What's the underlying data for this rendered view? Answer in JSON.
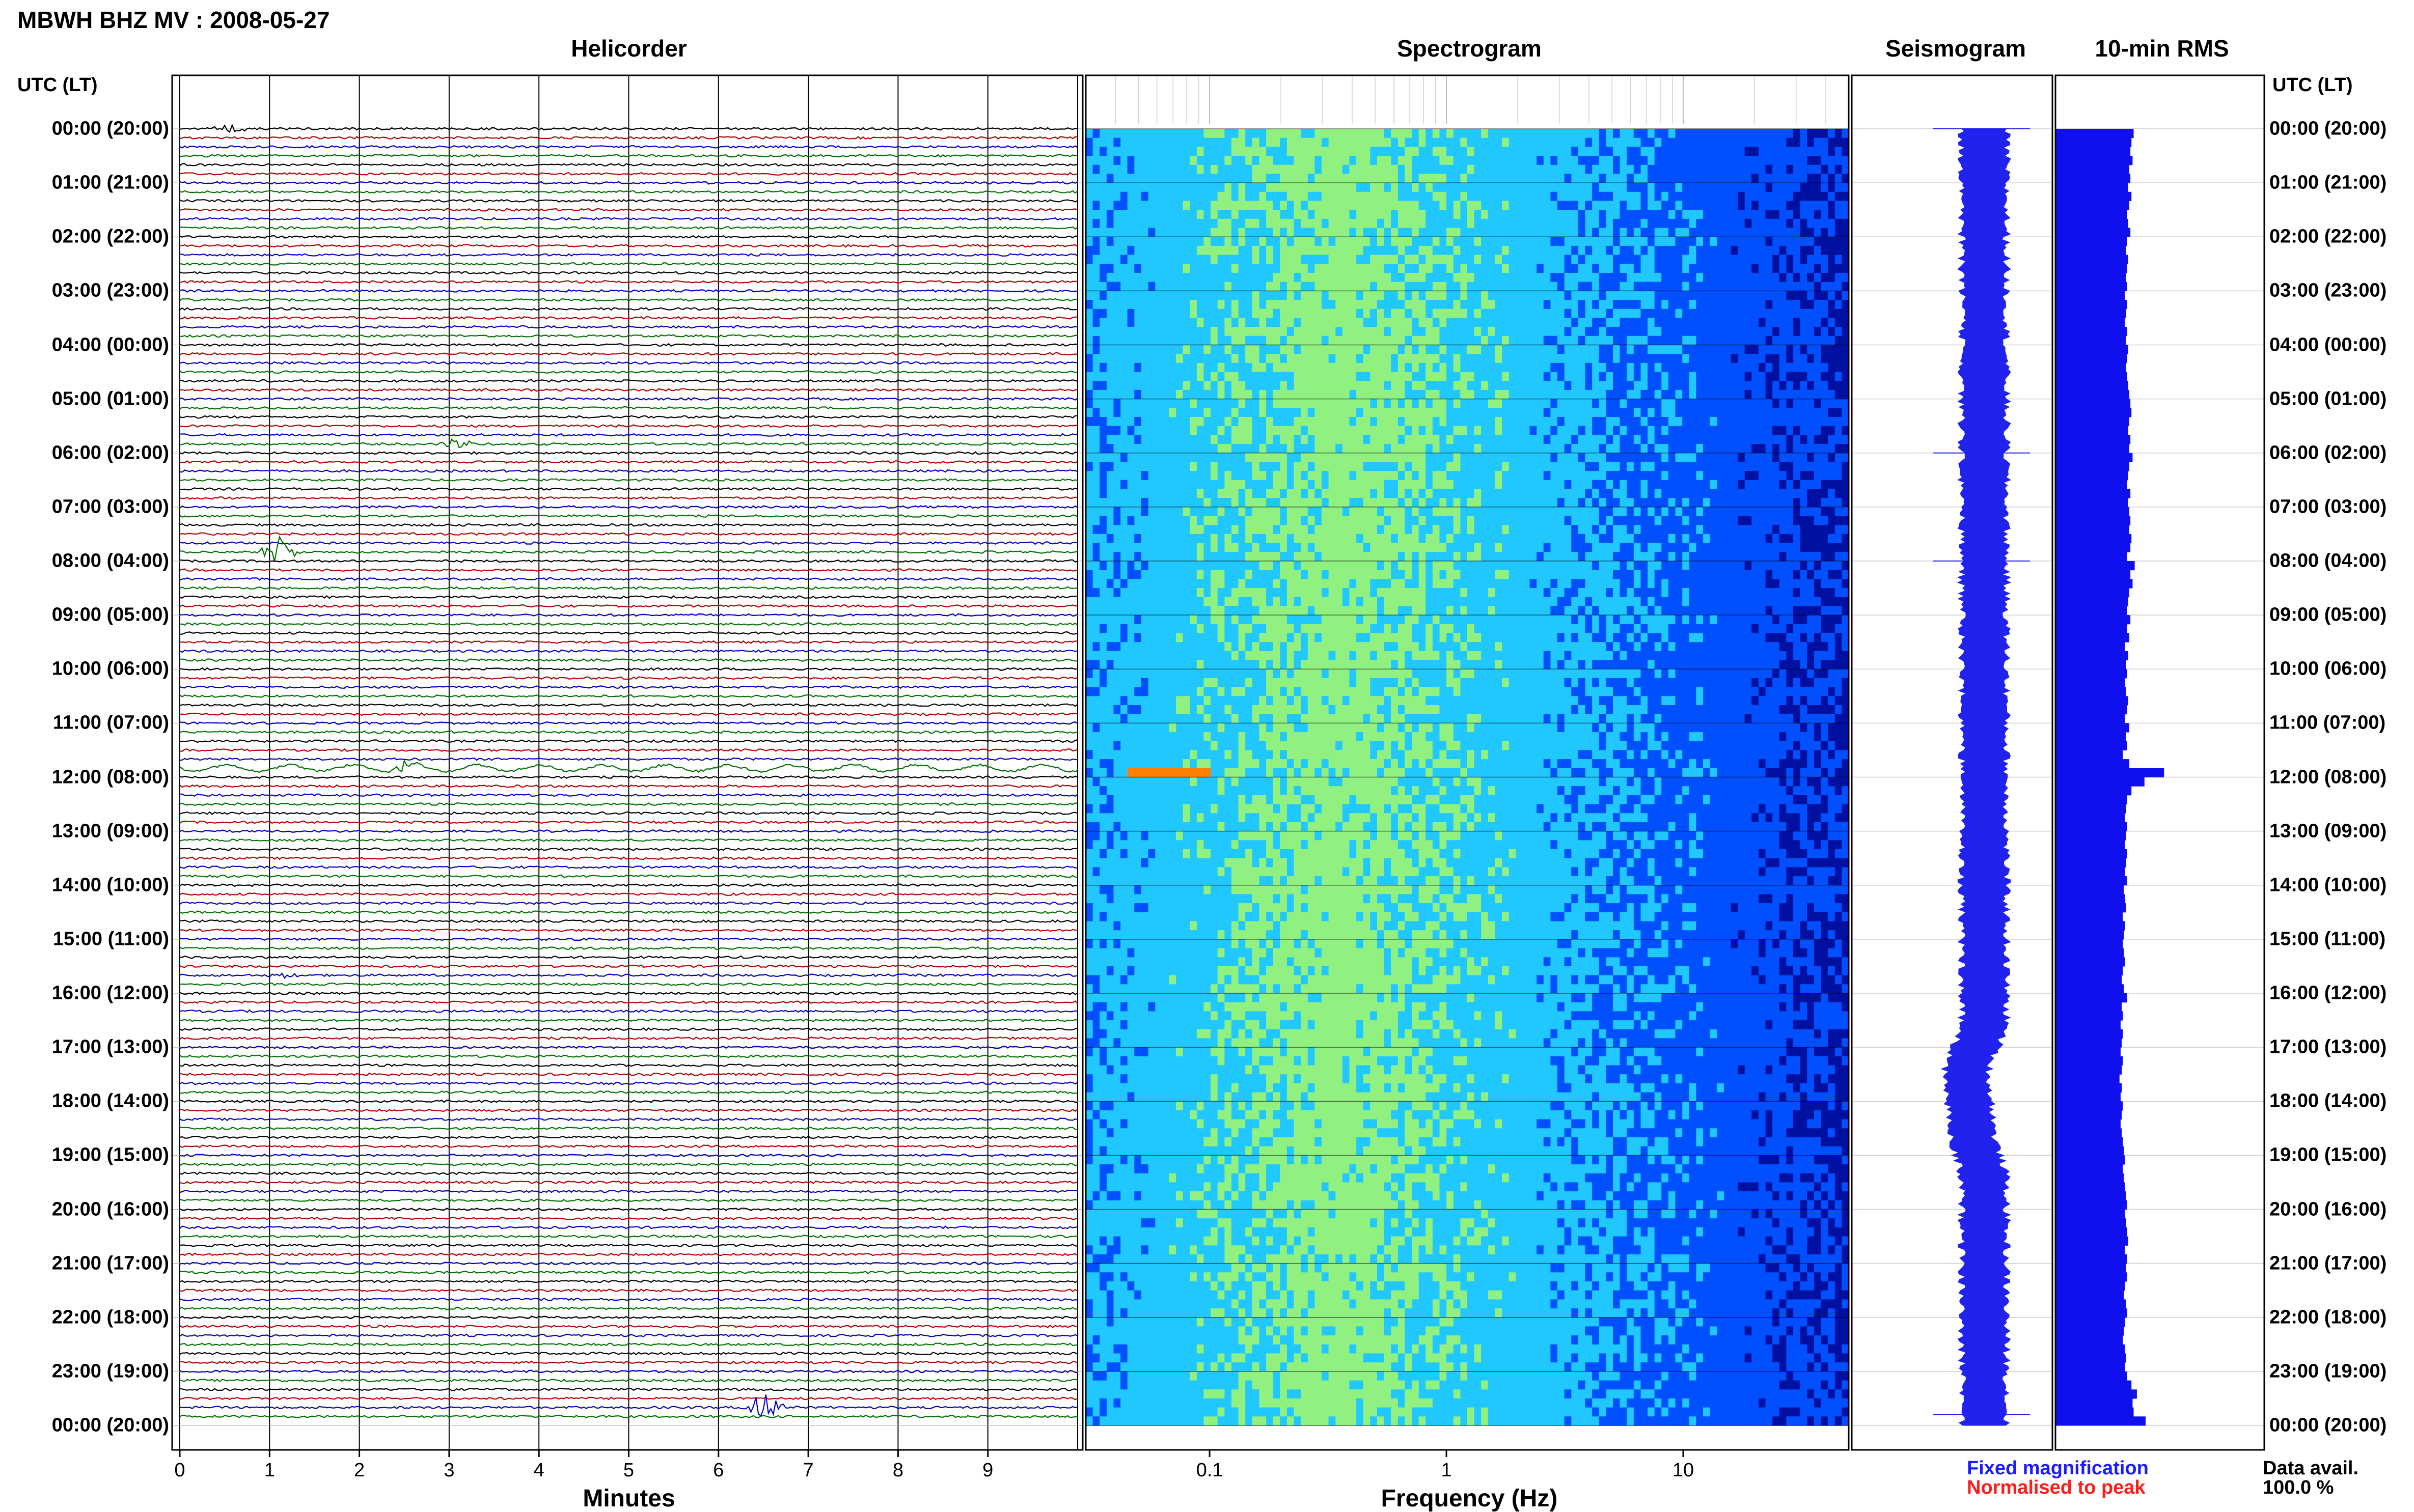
{
  "figure": {
    "title": "MBWH BHZ MV : 2008-05-27",
    "panel_titles": {
      "helicorder": "Helicorder",
      "spectrogram": "Spectrogram",
      "seismogram": "Seismogram",
      "rms": "10-min RMS"
    },
    "utc_header": "UTC (LT)",
    "row_labels": [
      "00:00 (20:00)",
      "01:00 (21:00)",
      "02:00 (22:00)",
      "03:00 (23:00)",
      "04:00 (00:00)",
      "05:00 (01:00)",
      "06:00 (02:00)",
      "07:00 (03:00)",
      "08:00 (04:00)",
      "09:00 (05:00)",
      "10:00 (06:00)",
      "11:00 (07:00)",
      "12:00 (08:00)",
      "13:00 (09:00)",
      "14:00 (10:00)",
      "15:00 (11:00)",
      "16:00 (12:00)",
      "17:00 (13:00)",
      "18:00 (14:00)",
      "19:00 (15:00)",
      "20:00 (16:00)",
      "21:00 (17:00)",
      "22:00 (18:00)",
      "23:00 (19:00)",
      "00:00 (20:00)"
    ],
    "x_axis_minutes": {
      "label": "Minutes",
      "ticks": [
        "0",
        "1",
        "2",
        "3",
        "4",
        "5",
        "6",
        "7",
        "8",
        "9"
      ]
    },
    "x_axis_frequency": {
      "label": "Frequency (Hz)",
      "ticks": [
        "0.1",
        "1",
        "10"
      ]
    },
    "legend": {
      "fixed": "Fixed magnification",
      "normalised": "Normalised to peak"
    },
    "data_availability": {
      "label": "Data avail.",
      "value": "100.0 %"
    },
    "colors": {
      "trace_cycle": [
        "#000000",
        "#b00000",
        "#0000c0",
        "#007000"
      ],
      "rms_bar": "#1010ee",
      "seismogram": "#2222ee",
      "legend_fixed": "#1c1cff",
      "legend_normalised": "#ff1c1c"
    }
  },
  "chart_data": [
    {
      "type": "line",
      "name": "helicorder",
      "xlabel": "Minutes",
      "xlim": [
        0,
        10
      ],
      "ylim": [
        "00:00",
        "24:00"
      ],
      "rows_per_hour": 6,
      "events": [
        {
          "row": 0,
          "minute": 0.55,
          "amp": 0.3
        },
        {
          "row": 35,
          "minute": 3.1,
          "amp": 0.4
        },
        {
          "row": 47,
          "minute": 1.1,
          "amp": 1.0
        },
        {
          "row": 71,
          "minute": 2.5,
          "amp": 0.35
        },
        {
          "row": 94,
          "minute": 1.2,
          "amp": 0.2
        },
        {
          "row": 142,
          "minute": 6.5,
          "amp": 1.2
        }
      ]
    },
    {
      "type": "heatmap",
      "name": "spectrogram",
      "xlabel": "Frequency (Hz)",
      "x_scale": "log",
      "xlim": [
        0.03,
        50
      ],
      "ylim": [
        "00:00",
        "24:00"
      ],
      "colormap": [
        "#0010a0",
        "#0050ff",
        "#20c8ff",
        "#90f080",
        "#ffff40",
        "#ff8000",
        "#ff0000"
      ],
      "peak_frequency_hz": 0.35,
      "hotspots": [
        {
          "hour": 11.85,
          "freq_from": 0.045,
          "freq_to": 0.1,
          "level": "high"
        }
      ]
    },
    {
      "type": "line",
      "name": "seismogram",
      "ylim": [
        "00:00",
        "24:00"
      ],
      "baseline_shift_hours": [
        {
          "hour": 0,
          "shift": 0.0
        },
        {
          "hour": 16.5,
          "shift": 0.0
        },
        {
          "hour": 17.5,
          "shift": -0.35
        },
        {
          "hour": 18.5,
          "shift": -0.25
        },
        {
          "hour": 19.5,
          "shift": 0.0
        },
        {
          "hour": 24,
          "shift": 0.0
        }
      ],
      "spikes_hours": [
        0.0,
        6.0,
        8.0,
        23.8
      ]
    },
    {
      "type": "bar",
      "name": "rms",
      "orientation": "horizontal",
      "values": [
        0.72,
        0.7,
        0.69,
        0.71,
        0.68,
        0.69,
        0.67,
        0.7,
        0.68,
        0.66,
        0.67,
        0.69,
        0.66,
        0.65,
        0.67,
        0.66,
        0.65,
        0.66,
        0.64,
        0.66,
        0.65,
        0.64,
        0.66,
        0.65,
        0.67,
        0.66,
        0.65,
        0.66,
        0.67,
        0.68,
        0.69,
        0.7,
        0.68,
        0.67,
        0.69,
        0.68,
        0.71,
        0.68,
        0.67,
        0.66,
        0.69,
        0.67,
        0.68,
        0.69,
        0.68,
        0.7,
        0.69,
        0.66,
        0.73,
        0.69,
        0.71,
        0.68,
        0.67,
        0.66,
        0.69,
        0.66,
        0.68,
        0.64,
        0.67,
        0.65,
        0.66,
        0.64,
        0.65,
        0.67,
        0.66,
        0.64,
        0.68,
        0.65,
        0.66,
        0.62,
        0.68,
        1.0,
        0.82,
        0.7,
        0.66,
        0.65,
        0.64,
        0.66,
        0.65,
        0.64,
        0.66,
        0.65,
        0.64,
        0.66,
        0.63,
        0.64,
        0.65,
        0.62,
        0.64,
        0.63,
        0.62,
        0.63,
        0.64,
        0.62,
        0.61,
        0.63,
        0.66,
        0.61,
        0.62,
        0.6,
        0.62,
        0.61,
        0.6,
        0.62,
        0.61,
        0.59,
        0.61,
        0.6,
        0.62,
        0.61,
        0.6,
        0.61,
        0.62,
        0.63,
        0.64,
        0.62,
        0.63,
        0.64,
        0.65,
        0.66,
        0.64,
        0.65,
        0.66,
        0.67,
        0.64,
        0.66,
        0.65,
        0.66,
        0.64,
        0.63,
        0.65,
        0.66,
        0.64,
        0.63,
        0.62,
        0.64,
        0.65,
        0.64,
        0.66,
        0.7,
        0.75,
        0.71,
        0.72,
        0.83
      ],
      "bins_per_hour": 6,
      "xlim": [
        0,
        1
      ]
    }
  ]
}
